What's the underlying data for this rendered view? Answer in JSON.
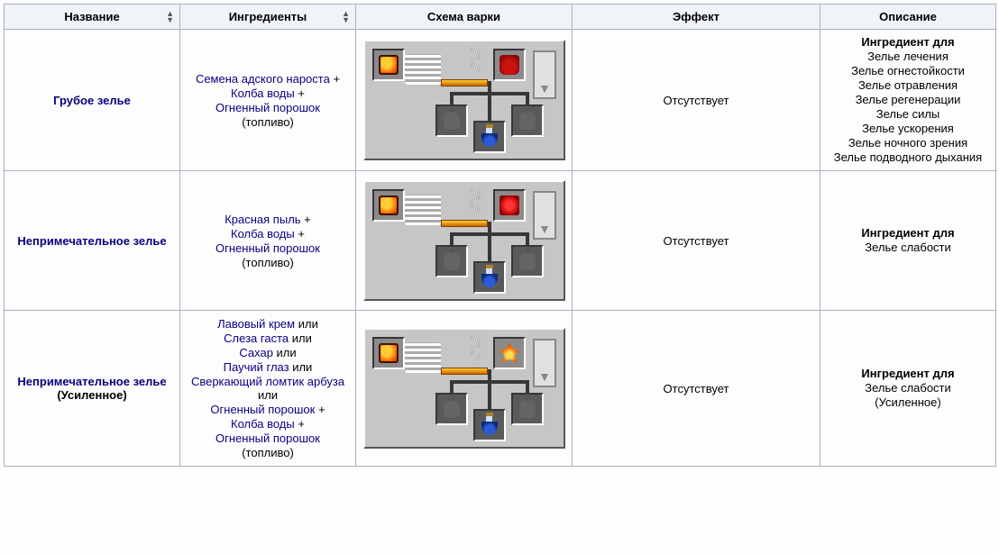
{
  "columns": {
    "name": "Название",
    "ingredients": "Ингредиенты",
    "scheme": "Схема варки",
    "effect": "Эффект",
    "description": "Описание"
  },
  "textPlus": " +",
  "textOr": " или",
  "rows": [
    {
      "name": {
        "main": "Грубое зелье",
        "sub": ""
      },
      "ingredients": [
        {
          "text": "Семена адского нароста",
          "link": true,
          "suffixKey": "plus"
        },
        {
          "text": "Колба воды",
          "link": true,
          "suffixKey": "plus"
        },
        {
          "text": "Огненный порошок",
          "link": true,
          "suffixKey": ""
        },
        {
          "text": "(топливо)",
          "link": false,
          "suffixKey": ""
        }
      ],
      "scheme_ingredient_sprite": "spr-netherwart",
      "effect": "Отсутствует",
      "desc_head": "Ингредиент для",
      "desc_lines": [
        "Зелье лечения",
        "Зелье огнестойкости",
        "Зелье отравления",
        "Зелье регенерации",
        "Зелье силы",
        "Зелье ускорения",
        "Зелье ночного зрения",
        "Зелье подводного дыхания"
      ]
    },
    {
      "name": {
        "main": "Непримечательное зелье",
        "sub": ""
      },
      "ingredients": [
        {
          "text": "Красная пыль",
          "link": true,
          "suffixKey": "plus"
        },
        {
          "text": "Колба воды",
          "link": true,
          "suffixKey": "plus"
        },
        {
          "text": "Огненный порошок",
          "link": true,
          "suffixKey": ""
        },
        {
          "text": "(топливо)",
          "link": false,
          "suffixKey": ""
        }
      ],
      "scheme_ingredient_sprite": "spr-redstone",
      "effect": "Отсутствует",
      "desc_head": "Ингредиент для",
      "desc_lines": [
        "Зелье слабости"
      ]
    },
    {
      "name": {
        "main": "Непримечательное зелье",
        "sub": "(Усиленное)"
      },
      "ingredients": [
        {
          "text": "Лавовый крем",
          "link": true,
          "suffixKey": "or"
        },
        {
          "text": "Слеза гаста",
          "link": true,
          "suffixKey": "or"
        },
        {
          "text": "Сахар",
          "link": true,
          "suffixKey": "or"
        },
        {
          "text": "Паучий глаз",
          "link": true,
          "suffixKey": "or"
        },
        {
          "text": "Сверкающий ломтик арбуза",
          "link": true,
          "suffixKey": "or"
        },
        {
          "text": "Огненный порошок",
          "link": true,
          "suffixKey": "plus"
        },
        {
          "text": "Колба воды",
          "link": true,
          "suffixKey": "plus"
        },
        {
          "text": "Огненный порошок",
          "link": true,
          "suffixKey": ""
        },
        {
          "text": "(топливо)",
          "link": false,
          "suffixKey": ""
        }
      ],
      "scheme_ingredient_sprite": "spr-fire",
      "effect": "Отсутствует",
      "desc_head": "Ингредиент для",
      "desc_lines": [
        "Зелье слабости",
        "(Усиленное)"
      ]
    }
  ]
}
